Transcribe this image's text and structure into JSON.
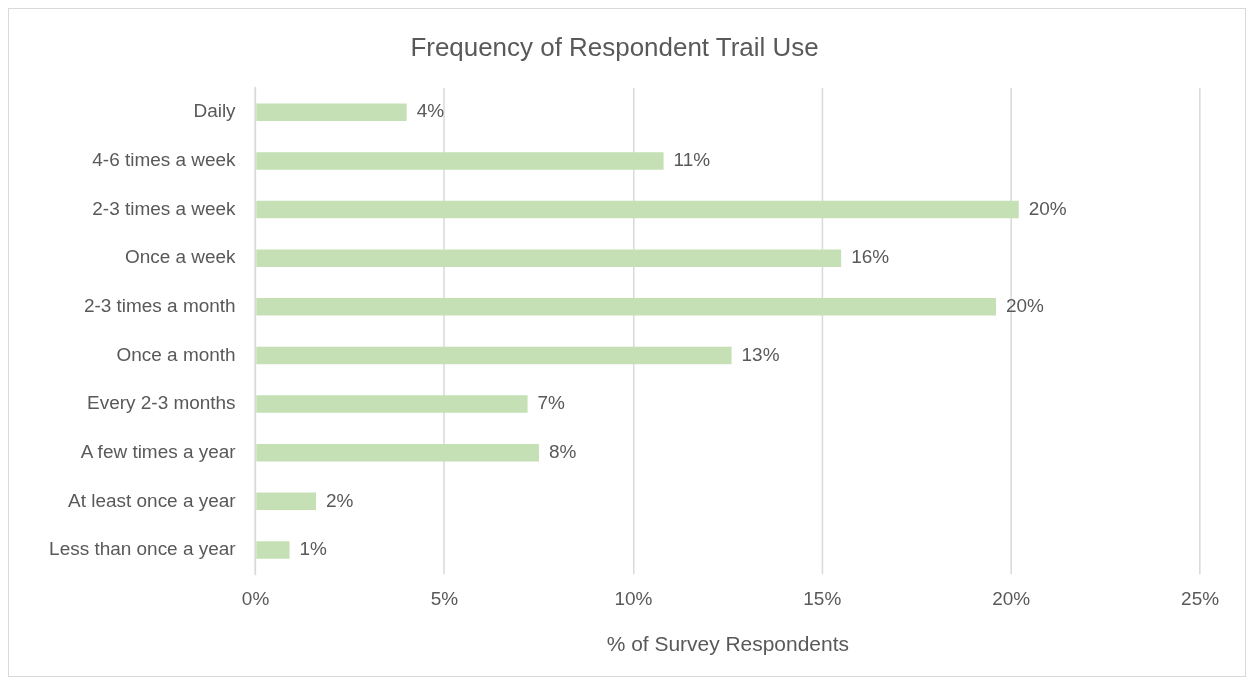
{
  "chart_data": {
    "type": "bar",
    "orientation": "horizontal",
    "title": "Frequency of Respondent Trail Use",
    "xlabel": "% of Survey Respondents",
    "categories": [
      "Daily",
      "4-6 times a week",
      "2-3 times a week",
      "Once a week",
      "2-3 times a month",
      "Once a month",
      "Every 2-3 months",
      "A few times a year",
      "At least once a year",
      "Less than once a year"
    ],
    "values": [
      4.0,
      10.8,
      20.2,
      15.5,
      19.6,
      12.6,
      7.2,
      7.5,
      1.6,
      0.9
    ],
    "value_labels": [
      "4%",
      "11%",
      "20%",
      "16%",
      "20%",
      "13%",
      "7%",
      "8%",
      "2%",
      "1%"
    ],
    "color": "#c5e0b4",
    "xlim": [
      0,
      25
    ],
    "xticks": [
      {
        "value": 0,
        "label": "0%"
      },
      {
        "value": 5,
        "label": "5%"
      },
      {
        "value": 10,
        "label": "10%"
      },
      {
        "value": 15,
        "label": "15%"
      },
      {
        "value": 20,
        "label": "20%"
      },
      {
        "value": 25,
        "label": "25%"
      }
    ],
    "grid": "x",
    "legend": false
  }
}
